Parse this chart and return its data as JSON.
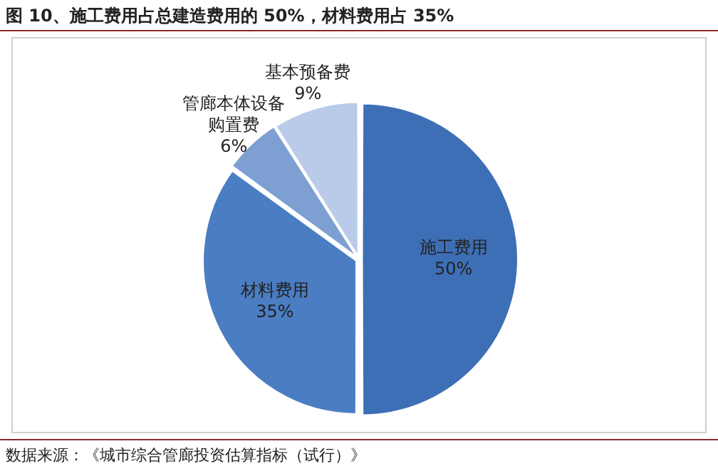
{
  "chart_data": {
    "type": "pie",
    "title": "图 10、施工费用占总建造费用的 50%，材料费用占 35%",
    "categories": [
      "施工费用",
      "材料费用",
      "管廊本体设备购置费",
      "基本预备费"
    ],
    "values": [
      50,
      35,
      6,
      9
    ],
    "value_labels": [
      "50%",
      "35%",
      "6%",
      "9%"
    ],
    "colors": [
      "#3d6fb6",
      "#4a7dc2",
      "#7d9fd2",
      "#b9cbe8"
    ],
    "annotations": [
      "数据来源：《城市综合管廊投资估算指标（试行）》"
    ]
  }
}
